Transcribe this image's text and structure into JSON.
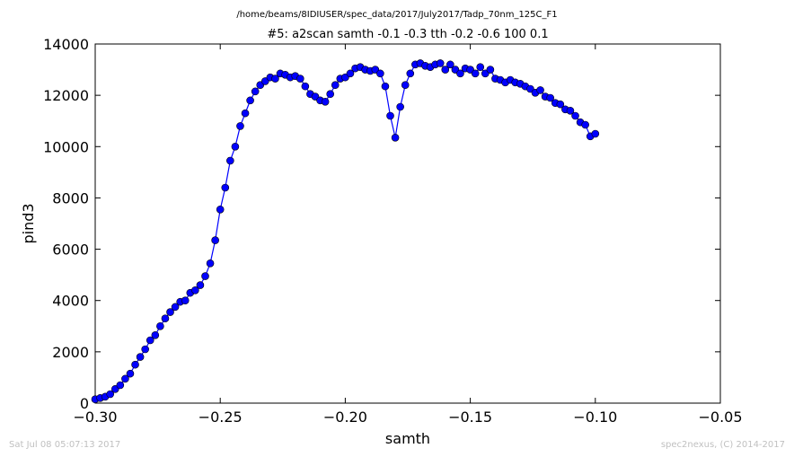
{
  "chart_data": {
    "type": "line",
    "suptitle": "/home/beams/8IDIUSER/spec_data/2017/July2017/Tadp_70nm_125C_F1",
    "title": "#5: a2scan  samth -0.1 -0.3  tth -0.2 -0.6  100 0.1",
    "xlabel": "samth",
    "ylabel": "pind3",
    "xlim": [
      -0.3,
      -0.05
    ],
    "ylim": [
      0,
      14000
    ],
    "xticks": [
      -0.3,
      -0.25,
      -0.2,
      -0.15,
      -0.1,
      -0.05
    ],
    "xtick_labels": [
      "−0.30",
      "−0.25",
      "−0.20",
      "−0.15",
      "−0.10",
      "−0.05"
    ],
    "yticks": [
      0,
      2000,
      4000,
      6000,
      8000,
      10000,
      12000,
      14000
    ],
    "ytick_labels": [
      "0",
      "2000",
      "4000",
      "6000",
      "8000",
      "10000",
      "12000",
      "14000"
    ],
    "grid": false,
    "series": [
      {
        "color": "#0000ff",
        "marker": "circle",
        "x": [
          -0.3,
          -0.298,
          -0.296,
          -0.294,
          -0.292,
          -0.29,
          -0.288,
          -0.286,
          -0.284,
          -0.282,
          -0.28,
          -0.278,
          -0.276,
          -0.274,
          -0.272,
          -0.27,
          -0.268,
          -0.266,
          -0.264,
          -0.262,
          -0.26,
          -0.258,
          -0.256,
          -0.254,
          -0.252,
          -0.25,
          -0.248,
          -0.246,
          -0.244,
          -0.242,
          -0.24,
          -0.238,
          -0.236,
          -0.234,
          -0.232,
          -0.23,
          -0.228,
          -0.226,
          -0.224,
          -0.222,
          -0.22,
          -0.218,
          -0.216,
          -0.214,
          -0.212,
          -0.21,
          -0.208,
          -0.206,
          -0.204,
          -0.202,
          -0.2,
          -0.198,
          -0.196,
          -0.194,
          -0.192,
          -0.19,
          -0.188,
          -0.186,
          -0.184,
          -0.182,
          -0.18,
          -0.178,
          -0.176,
          -0.174,
          -0.172,
          -0.17,
          -0.168,
          -0.166,
          -0.164,
          -0.162,
          -0.16,
          -0.158,
          -0.156,
          -0.154,
          -0.152,
          -0.15,
          -0.148,
          -0.146,
          -0.144,
          -0.142,
          -0.14,
          -0.138,
          -0.136,
          -0.134,
          -0.132,
          -0.13,
          -0.128,
          -0.126,
          -0.124,
          -0.122,
          -0.12,
          -0.118,
          -0.116,
          -0.114,
          -0.112,
          -0.11,
          -0.108,
          -0.106,
          -0.104,
          -0.102,
          -0.1
        ],
        "y": [
          150,
          200,
          250,
          350,
          550,
          700,
          950,
          1150,
          1500,
          1800,
          2100,
          2450,
          2650,
          3000,
          3300,
          3550,
          3750,
          3950,
          4000,
          4300,
          4400,
          4600,
          4950,
          5450,
          6350,
          7550,
          8400,
          9450,
          10000,
          10800,
          11300,
          11800,
          12150,
          12400,
          12550,
          12700,
          12650,
          12850,
          12800,
          12700,
          12750,
          12650,
          12350,
          12050,
          11950,
          11800,
          11750,
          12050,
          12400,
          12650,
          12700,
          12850,
          13050,
          13100,
          13000,
          12950,
          13000,
          12850,
          12350,
          11200,
          10350,
          11550,
          12400,
          12850,
          13200,
          13250,
          13150,
          13100,
          13200,
          13250,
          13000,
          13200,
          13000,
          12850,
          13050,
          13000,
          12850,
          13100,
          12850,
          13000,
          12650,
          12600,
          12500,
          12600,
          12500,
          12450,
          12350,
          12250,
          12100,
          12200,
          11950,
          11900,
          11700,
          11650,
          11450,
          11400,
          11200,
          10950,
          10850,
          10400,
          10500
        ]
      }
    ]
  },
  "footer": {
    "left": "Sat Jul 08 05:07:13 2017",
    "right": "spec2nexus, (C) 2014-2017"
  }
}
